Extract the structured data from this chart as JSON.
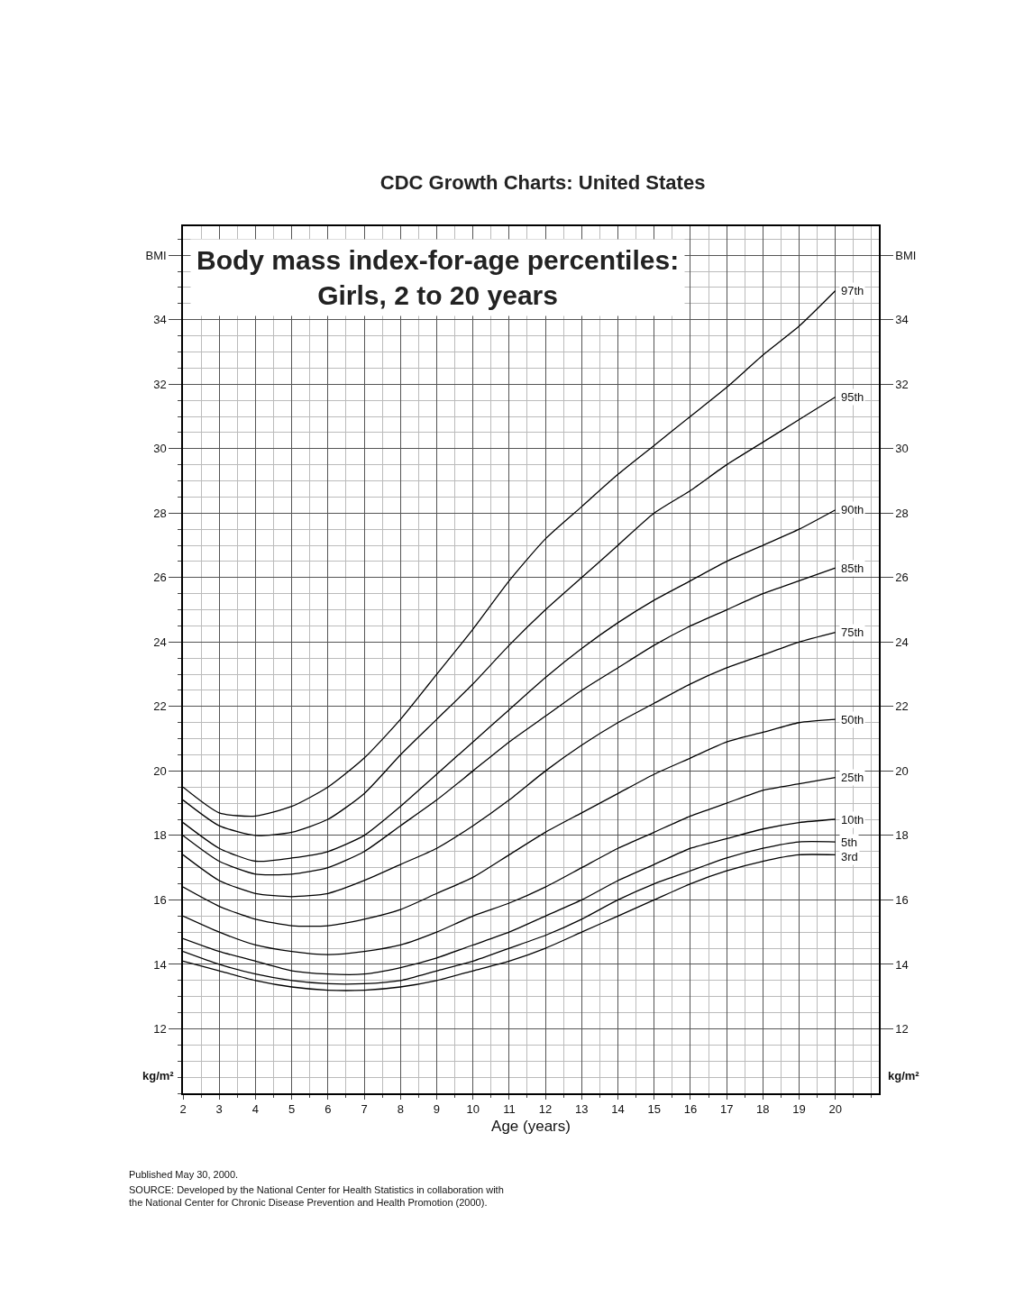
{
  "chart_data": {
    "type": "line",
    "title": "CDC Growth Charts: United States",
    "subtitle": "Body mass index-for-age percentiles:\nGirls, 2 to 20 years",
    "xlabel": "Age (years)",
    "ylabel": "kg/m²",
    "y2label": "kg/m²",
    "x": [
      2,
      3,
      4,
      5,
      6,
      7,
      8,
      9,
      10,
      11,
      12,
      13,
      14,
      15,
      16,
      17,
      18,
      19,
      20
    ],
    "xlim": [
      2,
      21.2
    ],
    "xticks": [
      2,
      3,
      4,
      5,
      6,
      7,
      8,
      9,
      10,
      11,
      12,
      13,
      14,
      15,
      16,
      17,
      18,
      19,
      20
    ],
    "ylim": [
      10,
      36.9
    ],
    "yticks": [
      12,
      14,
      16,
      18,
      20,
      22,
      24,
      26,
      28,
      30,
      32,
      34,
      {
        "value": 36,
        "label": "BMI"
      }
    ],
    "y2lim": [
      10,
      36.9
    ],
    "y2ticks": [
      12,
      14,
      16,
      18,
      20,
      22,
      24,
      26,
      28,
      30,
      32,
      34,
      {
        "value": 36,
        "label": "BMI"
      }
    ],
    "grid": true,
    "legend": false,
    "marker": "none",
    "line_style": "solid",
    "series": [
      {
        "name": "97th",
        "color": "#000000",
        "values": [
          19.5,
          18.7,
          18.6,
          18.9,
          19.5,
          20.4,
          21.6,
          23.0,
          24.4,
          25.9,
          27.2,
          28.2,
          29.2,
          30.1,
          31.0,
          31.9,
          32.9,
          33.8,
          34.9
        ]
      },
      {
        "name": "95th",
        "color": "#000000",
        "values": [
          19.1,
          18.3,
          18.0,
          18.1,
          18.5,
          19.3,
          20.5,
          21.6,
          22.7,
          23.9,
          25.0,
          26.0,
          27.0,
          28.0,
          28.7,
          29.5,
          30.2,
          30.9,
          31.6
        ]
      },
      {
        "name": "90th",
        "color": "#000000",
        "values": [
          18.4,
          17.6,
          17.2,
          17.3,
          17.5,
          18.0,
          18.9,
          19.9,
          20.9,
          21.9,
          22.9,
          23.8,
          24.6,
          25.3,
          25.9,
          26.5,
          27.0,
          27.5,
          28.1
        ]
      },
      {
        "name": "85th",
        "color": "#000000",
        "values": [
          18.0,
          17.2,
          16.8,
          16.8,
          17.0,
          17.5,
          18.3,
          19.1,
          20.0,
          20.9,
          21.7,
          22.5,
          23.2,
          23.9,
          24.5,
          25.0,
          25.5,
          25.9,
          26.3
        ]
      },
      {
        "name": "75th",
        "color": "#000000",
        "values": [
          17.4,
          16.6,
          16.2,
          16.1,
          16.2,
          16.6,
          17.1,
          17.6,
          18.3,
          19.1,
          20.0,
          20.8,
          21.5,
          22.1,
          22.7,
          23.2,
          23.6,
          24.0,
          24.3
        ]
      },
      {
        "name": "50th",
        "color": "#000000",
        "values": [
          16.4,
          15.8,
          15.4,
          15.2,
          15.2,
          15.4,
          15.7,
          16.2,
          16.7,
          17.4,
          18.1,
          18.7,
          19.3,
          19.9,
          20.4,
          20.9,
          21.2,
          21.5,
          21.6
        ]
      },
      {
        "name": "25th",
        "color": "#000000",
        "values": [
          15.5,
          15.0,
          14.6,
          14.4,
          14.3,
          14.4,
          14.6,
          15.0,
          15.5,
          15.9,
          16.4,
          17.0,
          17.6,
          18.1,
          18.6,
          19.0,
          19.4,
          19.6,
          19.8
        ]
      },
      {
        "name": "10th",
        "color": "#000000",
        "values": [
          14.8,
          14.4,
          14.1,
          13.8,
          13.7,
          13.7,
          13.9,
          14.2,
          14.6,
          15.0,
          15.5,
          16.0,
          16.6,
          17.1,
          17.6,
          17.9,
          18.2,
          18.4,
          18.5
        ]
      },
      {
        "name": "5th",
        "color": "#000000",
        "values": [
          14.4,
          14.0,
          13.7,
          13.5,
          13.4,
          13.4,
          13.5,
          13.8,
          14.1,
          14.5,
          14.9,
          15.4,
          16.0,
          16.5,
          16.9,
          17.3,
          17.6,
          17.8,
          17.8
        ]
      },
      {
        "name": "3rd",
        "color": "#000000",
        "values": [
          14.1,
          13.8,
          13.5,
          13.3,
          13.2,
          13.2,
          13.3,
          13.5,
          13.8,
          14.1,
          14.5,
          15.0,
          15.5,
          16.0,
          16.5,
          16.9,
          17.2,
          17.4,
          17.4
        ]
      }
    ],
    "annotations": [
      "Published May 30, 2000.",
      "SOURCE: Developed by the National Center for Health Statistics in collaboration with\nthe National Center for Chronic Disease Prevention and Health Promotion (2000)."
    ]
  }
}
